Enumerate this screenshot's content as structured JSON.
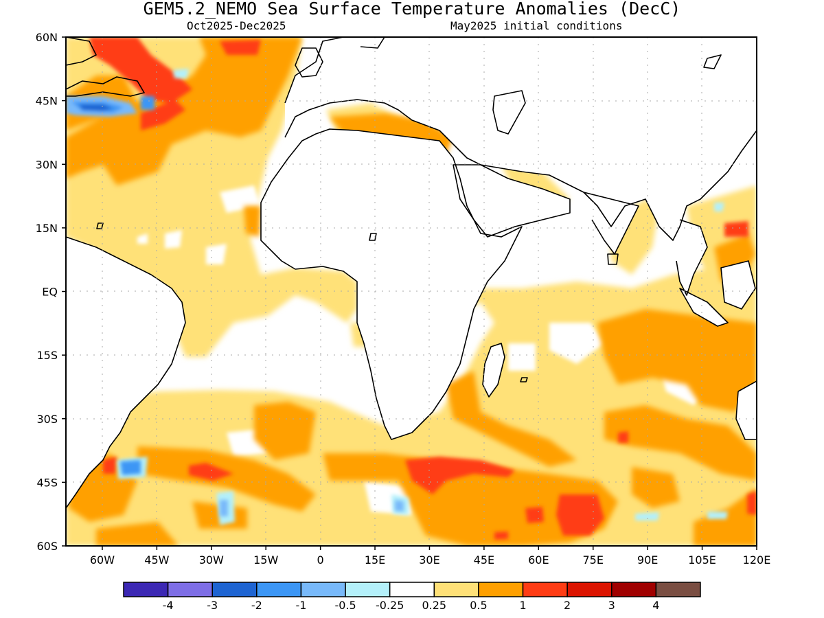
{
  "title": "GEM5.2_NEMO Sea Surface Temperature Anomalies (DecC)",
  "subtitle_left": "Oct2025-Dec2025",
  "subtitle_right": "May2025 initial conditions",
  "lat_labels": [
    {
      "text": "60N",
      "value": 60
    },
    {
      "text": "45N",
      "value": 45
    },
    {
      "text": "30N",
      "value": 30
    },
    {
      "text": "15N",
      "value": 15
    },
    {
      "text": "EQ",
      "value": 0
    },
    {
      "text": "15S",
      "value": -15
    },
    {
      "text": "30S",
      "value": -30
    },
    {
      "text": "45S",
      "value": -45
    },
    {
      "text": "60S",
      "value": -60
    }
  ],
  "lon_labels": [
    {
      "text": "60W",
      "value": -60
    },
    {
      "text": "45W",
      "value": -45
    },
    {
      "text": "30W",
      "value": -30
    },
    {
      "text": "15W",
      "value": -15
    },
    {
      "text": "0",
      "value": 0
    },
    {
      "text": "15E",
      "value": 15
    },
    {
      "text": "30E",
      "value": 30
    },
    {
      "text": "45E",
      "value": 45
    },
    {
      "text": "60E",
      "value": 60
    },
    {
      "text": "75E",
      "value": 75
    },
    {
      "text": "90E",
      "value": 90
    },
    {
      "text": "105E",
      "value": 105
    },
    {
      "text": "120E",
      "value": 120
    }
  ],
  "map_extent": {
    "lon": [
      -70,
      120
    ],
    "lat": [
      -60,
      60
    ]
  },
  "colorbar": {
    "colors": [
      "#3c28b4",
      "#7e6ee6",
      "#1e64d2",
      "#3c96f5",
      "#78b9fa",
      "#b4f0fa",
      "#ffffff",
      "#ffe178",
      "#ffa000",
      "#ff3c14",
      "#dc1400",
      "#a00000",
      "#7a4e42"
    ],
    "labels": [
      "-4",
      "-3",
      "-2",
      "-1",
      "-0.5",
      "-0.25",
      "0.25",
      "0.5",
      "1",
      "2",
      "3",
      "4"
    ]
  },
  "colors": {
    "land": "#ffffff",
    "grid": "#aaaaaa"
  }
}
